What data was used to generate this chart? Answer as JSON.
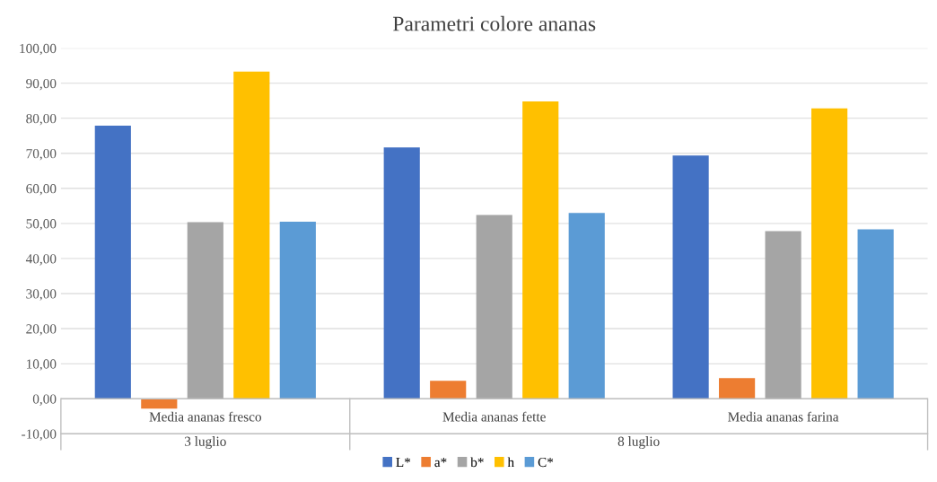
{
  "chart_data": {
    "type": "bar",
    "title": "Parametri colore ananas",
    "categories": [
      "Media ananas fresco",
      "Media ananas fette",
      "Media ananas farina"
    ],
    "series": [
      {
        "name": "L*",
        "color": "#4472c4",
        "values": [
          77.9,
          71.7,
          69.4
        ]
      },
      {
        "name": "a*",
        "color": "#ed7d31",
        "values": [
          -2.8,
          5.1,
          5.9
        ]
      },
      {
        "name": "b*",
        "color": "#a5a5a5",
        "values": [
          50.4,
          52.4,
          47.8
        ]
      },
      {
        "name": "h",
        "color": "#ffc000",
        "values": [
          93.3,
          84.8,
          82.8
        ]
      },
      {
        "name": "C*",
        "color": "#5b9bd5",
        "values": [
          50.5,
          53.0,
          48.3
        ]
      }
    ],
    "ylim": [
      -10,
      100
    ],
    "yticks": [
      {
        "value": -10,
        "label": "-10,00"
      },
      {
        "value": 0,
        "label": "0,00"
      },
      {
        "value": 10,
        "label": "10,00"
      },
      {
        "value": 20,
        "label": "20,00"
      },
      {
        "value": 30,
        "label": "30,00"
      },
      {
        "value": 40,
        "label": "40,00"
      },
      {
        "value": 50,
        "label": "50,00"
      },
      {
        "value": 60,
        "label": "60,00"
      },
      {
        "value": 70,
        "label": "70,00"
      },
      {
        "value": 80,
        "label": "80,00"
      },
      {
        "value": 90,
        "label": "90,00"
      },
      {
        "value": 100,
        "label": "100,00"
      }
    ],
    "annotations": [
      "3 luglio",
      "8 luglio"
    ],
    "grid": "y",
    "legend": "bottom"
  }
}
